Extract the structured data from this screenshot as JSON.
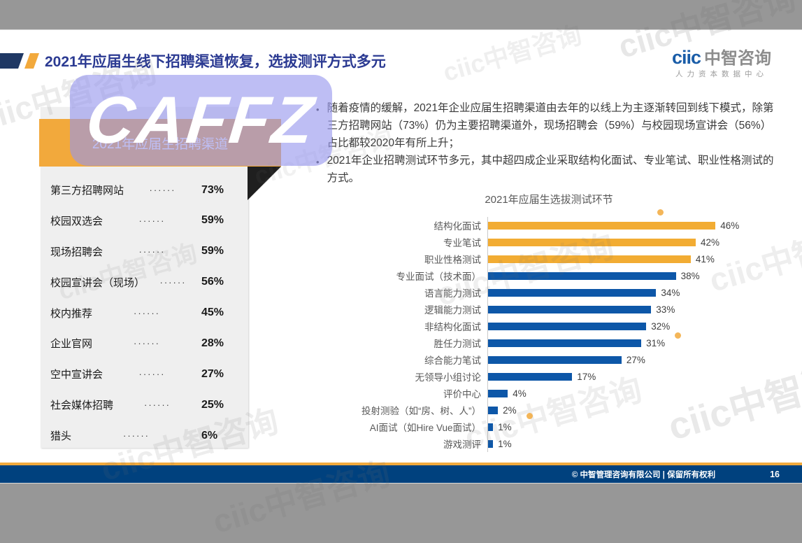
{
  "header": {
    "title": "2021年应届生线下招聘渠道恢复，选拔测评方式多元"
  },
  "logo": {
    "brand_en": "ciic",
    "brand_cn": "中智咨询",
    "tagline": "人力资本数据中心"
  },
  "bullets": [
    {
      "marker": "•",
      "text": "随着疫情的缓解，2021年企业应届生招聘渠道由去年的以线上为主逐渐转回到线下模式，除第三方招聘网站（73%）仍为主要招聘渠道外，现场招聘会（59%）与校园现场宣讲会（56%）占比都较2020年有所上升；"
    },
    {
      "marker": "•",
      "text": "2021年企业招聘测试环节多元，其中超四成企业采取结构化面试、专业笔试、职业性格测试的方式。"
    }
  ],
  "channel_card": {
    "leader_dots": "······"
  },
  "chart_data": [
    {
      "type": "bar",
      "orientation": "horizontal",
      "title": "2021年应届生选拔测试环节",
      "categories": [
        "结构化面试",
        "专业笔试",
        "职业性格测试",
        "专业面试（技术面）",
        "语言能力测试",
        "逻辑能力测试",
        "非结构化面试",
        "胜任力测试",
        "综合能力笔试",
        "无领导小组讨论",
        "评价中心",
        "投射测验（如“房、树、人”）",
        "AI面试（如Hire Vue面试）",
        "游戏测评"
      ],
      "values": [
        46,
        42,
        41,
        38,
        34,
        33,
        32,
        31,
        27,
        17,
        4,
        2,
        1,
        1
      ],
      "value_suffix": "%",
      "xlim": [
        0,
        50
      ],
      "grid": false,
      "legend": false,
      "bar_color": "#0D57A8",
      "highlight_color": "#F2AC33",
      "highlighted_indices": [
        0,
        1,
        2
      ],
      "axis_color": "#C9C9C9"
    },
    {
      "type": "table",
      "title": "2021年应届生招聘渠道",
      "categories": [
        "第三方招聘网站",
        "校园双选会",
        "现场招聘会",
        "校园宣讲会（现场）",
        "校内推荐",
        "企业官网",
        "空中宣讲会",
        "社会媒体招聘",
        "猎头"
      ],
      "values": [
        73,
        59,
        59,
        56,
        45,
        28,
        27,
        25,
        6
      ],
      "value_suffix": "%"
    }
  ],
  "watermarks": {
    "caffz_text": "CAFFZ",
    "brand_text": "ciic中智咨询"
  },
  "footer": {
    "copyright": "© 中智管理咨询有限公司 | 保留所有权利",
    "page_number": "16"
  },
  "colors": {
    "accent_yellow": "#F2A93C",
    "header_navy": "#1F3864",
    "footer_navy": "#00417E",
    "title_blue": "#2B3A92",
    "bar_blue": "#0D57A8",
    "bar_yellow": "#F2AC33"
  }
}
